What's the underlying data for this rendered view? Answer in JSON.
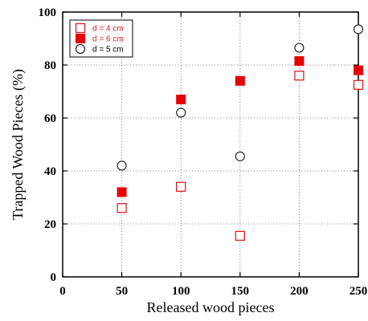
{
  "chart_data": {
    "type": "scatter",
    "xlabel": "Released wood pieces",
    "ylabel": "Trapped Wood Pieces (%)",
    "xlim": [
      0,
      250
    ],
    "ylim": [
      0,
      100
    ],
    "x_ticks": [
      "0",
      "50",
      "100",
      "150",
      "200",
      "250"
    ],
    "y_ticks": [
      "0",
      "20",
      "40",
      "60",
      "80",
      "100"
    ],
    "grid": true,
    "legend_position": "top-left",
    "series": [
      {
        "name": "d = 4 cm",
        "marker": "open-square",
        "color": "#e02020",
        "label_color": "#e02020",
        "x": [
          50,
          100,
          150,
          200,
          250
        ],
        "y": [
          26,
          34,
          15.5,
          76,
          72.5
        ]
      },
      {
        "name": "d = 6 cm",
        "marker": "filled-square",
        "color": "#e60000",
        "label_color": "#e02020",
        "x": [
          50,
          100,
          150,
          200,
          250
        ],
        "y": [
          32,
          67,
          74,
          81.5,
          78
        ]
      },
      {
        "name": "d = 5 cm",
        "marker": "open-circle",
        "color": "#222222",
        "label_color": "#000000",
        "x": [
          50,
          100,
          150,
          200,
          250
        ],
        "y": [
          42,
          62,
          45.5,
          86.5,
          93.5
        ]
      }
    ]
  }
}
